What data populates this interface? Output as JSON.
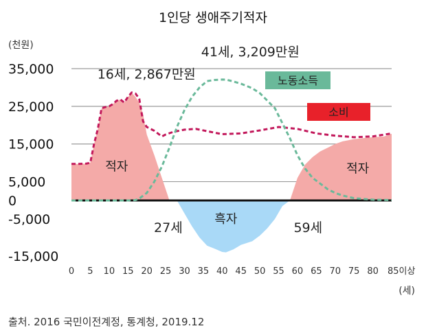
{
  "chart_data": {
    "type": "area",
    "title": "1인당 생애주기적자",
    "yunit": "(천원)",
    "xunit": "(세)",
    "ylim": [
      -15000,
      35000
    ],
    "xlim": [
      0,
      85
    ],
    "yticks": [
      {
        "label": "35,000",
        "value": 35000
      },
      {
        "label": "25,000",
        "value": 25000
      },
      {
        "label": "15,000",
        "value": 15000
      },
      {
        "label": "5,000",
        "value": 5000
      },
      {
        "label": "0",
        "value": 0
      },
      {
        "label": "-5,000",
        "value": -5000
      },
      {
        "label": "-15,000",
        "value": -15000
      }
    ],
    "gridlines": [
      35000,
      25000,
      15000,
      5000
    ],
    "xticks": [
      {
        "label": "0",
        "value": 0
      },
      {
        "label": "5",
        "value": 5
      },
      {
        "label": "10",
        "value": 10
      },
      {
        "label": "15",
        "value": 15
      },
      {
        "label": "20",
        "value": 20
      },
      {
        "label": "25",
        "value": 25
      },
      {
        "label": "30",
        "value": 30
      },
      {
        "label": "35",
        "value": 35
      },
      {
        "label": "40",
        "value": 40
      },
      {
        "label": "45",
        "value": 45
      },
      {
        "label": "50",
        "value": 50
      },
      {
        "label": "55",
        "value": 55
      },
      {
        "label": "60",
        "value": 60
      },
      {
        "label": "65",
        "value": 65
      },
      {
        "label": "70",
        "value": 70
      },
      {
        "label": "75",
        "value": 75
      },
      {
        "label": "80",
        "value": 80
      },
      {
        "label": "85이상",
        "value": 85
      }
    ],
    "series": [
      {
        "name": "소비",
        "style": "dashed",
        "color": "#c2185b",
        "x": [
          0,
          2,
          4,
          5,
          6,
          7,
          8,
          9,
          10,
          11,
          12,
          13,
          14,
          15,
          16,
          17,
          18,
          19,
          20,
          22,
          24,
          25,
          27,
          30,
          33,
          35,
          38,
          40,
          45,
          50,
          55,
          60,
          65,
          70,
          75,
          80,
          85
        ],
        "y": [
          9700,
          9700,
          9800,
          10000,
          15000,
          19000,
          24500,
          24800,
          25000,
          25600,
          26500,
          26800,
          26000,
          27500,
          28670,
          28400,
          27000,
          21000,
          19500,
          18500,
          17000,
          17500,
          18200,
          18800,
          19000,
          18600,
          18000,
          17600,
          17800,
          18600,
          19500,
          19000,
          17800,
          17200,
          16800,
          17000,
          17800
        ]
      },
      {
        "name": "노동소득",
        "style": "dashed",
        "color": "#6ab99a",
        "x": [
          0,
          15,
          17,
          18,
          20,
          22,
          24,
          26,
          28,
          30,
          32,
          34,
          36,
          38,
          40,
          41,
          43,
          45,
          48,
          50,
          52,
          54,
          56,
          58,
          60,
          62,
          64,
          66,
          68,
          70,
          72,
          75,
          80,
          85
        ],
        "y": [
          0,
          0,
          100,
          500,
          2000,
          5000,
          9000,
          14000,
          19500,
          24000,
          27500,
          30000,
          31700,
          32000,
          32100,
          32090,
          31600,
          31000,
          29800,
          28500,
          26500,
          24500,
          20500,
          16500,
          12000,
          8500,
          6000,
          4500,
          3000,
          2000,
          1300,
          600,
          200,
          100
        ]
      },
      {
        "name": "적자",
        "style": "fill",
        "color": "#f4aaa8",
        "x": [
          0,
          2,
          4,
          5,
          6,
          7,
          8,
          9,
          10,
          11,
          12,
          13,
          14,
          15,
          16,
          17,
          18,
          19,
          20,
          22,
          24,
          25,
          26
        ],
        "y": [
          9700,
          9700,
          9800,
          10000,
          15000,
          19000,
          24500,
          24800,
          25000,
          25600,
          26500,
          26800,
          26000,
          27500,
          28600,
          27500,
          26000,
          23000,
          17500,
          12000,
          6000,
          3000,
          0
        ]
      },
      {
        "name": "흑자",
        "style": "fill",
        "color": "#a9d9f7",
        "x": [
          28,
          30,
          32,
          34,
          36,
          38,
          40,
          41,
          43,
          45,
          48,
          50,
          52,
          54,
          56,
          58
        ],
        "y": [
          0,
          -3500,
          -7000,
          -10000,
          -12200,
          -13000,
          -13900,
          -14000,
          -13200,
          -12000,
          -11000,
          -9500,
          -7500,
          -5000,
          -1500,
          0
        ]
      },
      {
        "name": "적자",
        "style": "fill",
        "color": "#f4aaa8",
        "x": [
          58,
          60,
          62,
          64,
          66,
          68,
          70,
          72,
          75,
          78,
          80,
          83,
          85
        ],
        "y": [
          0,
          6000,
          9500,
          11500,
          13000,
          14000,
          15000,
          15700,
          16300,
          16600,
          16800,
          17000,
          17700
        ]
      }
    ],
    "annotations": [
      {
        "text": "16세, 2,867만원",
        "x": 16,
        "y": 28670
      },
      {
        "text": "41세, 3,209만원",
        "x": 41,
        "y": 32090
      },
      {
        "text": "27세",
        "x": 27,
        "y": 0
      },
      {
        "text": "59세",
        "x": 59,
        "y": 0
      }
    ],
    "region_labels": [
      {
        "text": "적자",
        "x": 12,
        "y": 9000
      },
      {
        "text": "흑자",
        "x": 41,
        "y": -5000
      },
      {
        "text": "적자",
        "x": 76,
        "y": 8500
      }
    ],
    "legend": [
      {
        "label": "노동소득",
        "color": "#6ab99a"
      },
      {
        "label": "소비",
        "color": "#e8212a"
      }
    ]
  },
  "source": "출처. 2016 국민이전계정, 통계청, 2019.12"
}
